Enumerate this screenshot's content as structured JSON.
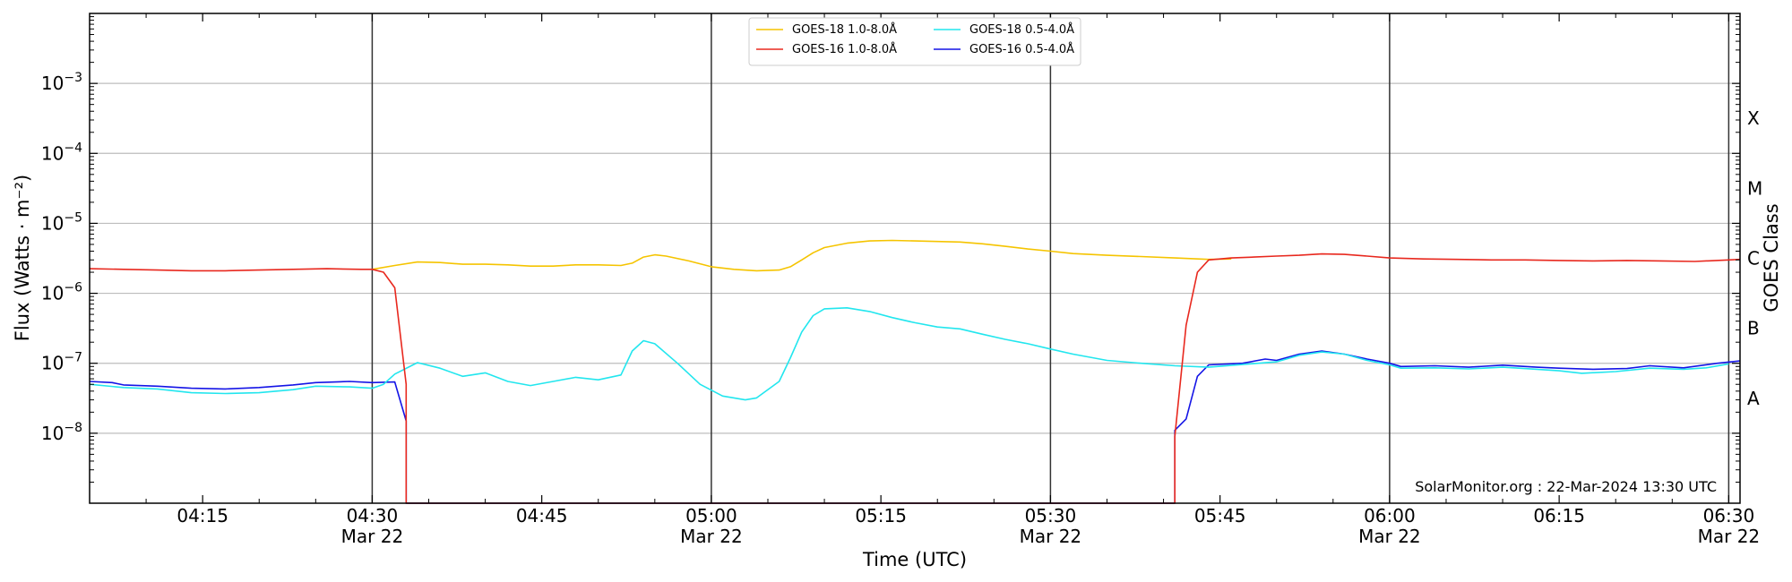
{
  "chart_data": {
    "type": "line",
    "title": "",
    "xlabel": "Time (UTC)",
    "ylabel": "Flux (Watts · m⁻²)",
    "ylabel_right": "GOES Class",
    "yscale": "log",
    "ylim": [
      1e-09,
      0.01
    ],
    "xlim": [
      "04:05",
      "06:31"
    ],
    "grid": "horizontal",
    "legend_placement": "top-center",
    "credit": "SolarMonitor.org : 22-Mar-2024 13:30 UTC",
    "y_ticks": [
      {
        "value": 0.001,
        "base": "10",
        "exp": "−3"
      },
      {
        "value": 0.0001,
        "base": "10",
        "exp": "−4"
      },
      {
        "value": 1e-05,
        "base": "10",
        "exp": "−5"
      },
      {
        "value": 1e-06,
        "base": "10",
        "exp": "−6"
      },
      {
        "value": 1e-07,
        "base": "10",
        "exp": "−7"
      },
      {
        "value": 1e-08,
        "base": "10",
        "exp": "−8"
      }
    ],
    "x_ticks": [
      {
        "t": "04:15",
        "label": "04:15",
        "date": ""
      },
      {
        "t": "04:30",
        "label": "04:30",
        "date": "Mar 22"
      },
      {
        "t": "04:45",
        "label": "04:45",
        "date": ""
      },
      {
        "t": "05:00",
        "label": "05:00",
        "date": "Mar 22"
      },
      {
        "t": "05:15",
        "label": "05:15",
        "date": ""
      },
      {
        "t": "05:30",
        "label": "05:30",
        "date": "Mar 22"
      },
      {
        "t": "05:45",
        "label": "05:45",
        "date": ""
      },
      {
        "t": "06:00",
        "label": "06:00",
        "date": "Mar 22"
      },
      {
        "t": "06:15",
        "label": "06:15",
        "date": ""
      },
      {
        "t": "06:30",
        "label": "06:30",
        "date": "Mar 22"
      }
    ],
    "vertical_lines": [
      "04:30",
      "05:00",
      "05:30",
      "06:00",
      "06:30"
    ],
    "goes_classes": [
      {
        "label": "A",
        "value": 3.16e-08
      },
      {
        "label": "B",
        "value": 3.16e-07
      },
      {
        "label": "C",
        "value": 3.16e-06
      },
      {
        "label": "M",
        "value": 3.16e-05
      },
      {
        "label": "X",
        "value": 0.000316
      }
    ],
    "series": [
      {
        "name": "GOES-18 1.0-8.0Å",
        "color": "#f5c400",
        "points": [
          [
            "04:30",
            2.2e-06
          ],
          [
            "04:32",
            2.5e-06
          ],
          [
            "04:34",
            2.8e-06
          ],
          [
            "04:36",
            2.75e-06
          ],
          [
            "04:38",
            2.6e-06
          ],
          [
            "04:40",
            2.6e-06
          ],
          [
            "04:42",
            2.55e-06
          ],
          [
            "04:44",
            2.45e-06
          ],
          [
            "04:46",
            2.45e-06
          ],
          [
            "04:48",
            2.55e-06
          ],
          [
            "04:50",
            2.55e-06
          ],
          [
            "04:52",
            2.5e-06
          ],
          [
            "04:53",
            2.7e-06
          ],
          [
            "04:54",
            3.3e-06
          ],
          [
            "04:55",
            3.55e-06
          ],
          [
            "04:56",
            3.4e-06
          ],
          [
            "04:58",
            2.9e-06
          ],
          [
            "05:00",
            2.4e-06
          ],
          [
            "05:02",
            2.2e-06
          ],
          [
            "05:04",
            2.1e-06
          ],
          [
            "05:06",
            2.15e-06
          ],
          [
            "05:07",
            2.4e-06
          ],
          [
            "05:08",
            3e-06
          ],
          [
            "05:09",
            3.8e-06
          ],
          [
            "05:10",
            4.5e-06
          ],
          [
            "05:12",
            5.2e-06
          ],
          [
            "05:14",
            5.6e-06
          ],
          [
            "05:16",
            5.7e-06
          ],
          [
            "05:18",
            5.6e-06
          ],
          [
            "05:20",
            5.5e-06
          ],
          [
            "05:22",
            5.4e-06
          ],
          [
            "05:24",
            5.1e-06
          ],
          [
            "05:26",
            4.7e-06
          ],
          [
            "05:28",
            4.3e-06
          ],
          [
            "05:30",
            4e-06
          ],
          [
            "05:32",
            3.7e-06
          ],
          [
            "05:35",
            3.5e-06
          ],
          [
            "05:38",
            3.35e-06
          ],
          [
            "05:41",
            3.2e-06
          ],
          [
            "05:44",
            3.05e-06
          ],
          [
            "05:46",
            3.1e-06
          ]
        ]
      },
      {
        "name": "GOES-16 1.0-8.0Å",
        "color": "#e8281e",
        "points": [
          [
            "04:05",
            2.25e-06
          ],
          [
            "04:08",
            2.2e-06
          ],
          [
            "04:11",
            2.15e-06
          ],
          [
            "04:14",
            2.1e-06
          ],
          [
            "04:17",
            2.1e-06
          ],
          [
            "04:20",
            2.15e-06
          ],
          [
            "04:23",
            2.2e-06
          ],
          [
            "04:26",
            2.25e-06
          ],
          [
            "04:29",
            2.2e-06
          ],
          [
            "04:30",
            2.2e-06
          ],
          [
            "04:31",
            2e-06
          ],
          [
            "04:32",
            1.2e-06
          ],
          [
            "04:33",
            5e-08
          ],
          [
            "04:33",
            1e-10
          ],
          [
            "05:41",
            1e-10
          ],
          [
            "05:41",
            9e-09
          ],
          [
            "05:42",
            3.5e-07
          ],
          [
            "05:43",
            2e-06
          ],
          [
            "05:44",
            3e-06
          ],
          [
            "05:46",
            3.2e-06
          ],
          [
            "05:48",
            3.3e-06
          ],
          [
            "05:50",
            3.4e-06
          ],
          [
            "05:52",
            3.5e-06
          ],
          [
            "05:54",
            3.65e-06
          ],
          [
            "05:56",
            3.6e-06
          ],
          [
            "05:58",
            3.4e-06
          ],
          [
            "06:00",
            3.2e-06
          ],
          [
            "06:03",
            3.1e-06
          ],
          [
            "06:06",
            3.05e-06
          ],
          [
            "06:09",
            3e-06
          ],
          [
            "06:12",
            3e-06
          ],
          [
            "06:15",
            2.95e-06
          ],
          [
            "06:18",
            2.9e-06
          ],
          [
            "06:21",
            2.95e-06
          ],
          [
            "06:24",
            2.9e-06
          ],
          [
            "06:27",
            2.85e-06
          ],
          [
            "06:30",
            3e-06
          ],
          [
            "06:31",
            3.05e-06
          ]
        ]
      },
      {
        "name": "GOES-18 0.5-4.0Å",
        "color": "#22e6ee",
        "points": [
          [
            "04:05",
            5e-08
          ],
          [
            "04:08",
            4.5e-08
          ],
          [
            "04:11",
            4.3e-08
          ],
          [
            "04:14",
            3.8e-08
          ],
          [
            "04:17",
            3.7e-08
          ],
          [
            "04:20",
            3.8e-08
          ],
          [
            "04:23",
            4.2e-08
          ],
          [
            "04:25",
            4.7e-08
          ],
          [
            "04:28",
            4.6e-08
          ],
          [
            "04:30",
            4.4e-08
          ],
          [
            "04:31",
            5e-08
          ],
          [
            "04:32",
            7e-08
          ],
          [
            "04:34",
            1.02e-07
          ],
          [
            "04:36",
            8.5e-08
          ],
          [
            "04:38",
            6.5e-08
          ],
          [
            "04:40",
            7.3e-08
          ],
          [
            "04:42",
            5.5e-08
          ],
          [
            "04:44",
            4.8e-08
          ],
          [
            "04:46",
            5.5e-08
          ],
          [
            "04:48",
            6.3e-08
          ],
          [
            "04:50",
            5.8e-08
          ],
          [
            "04:52",
            6.8e-08
          ],
          [
            "04:53",
            1.5e-07
          ],
          [
            "04:54",
            2.1e-07
          ],
          [
            "04:55",
            1.9e-07
          ],
          [
            "04:57",
            1e-07
          ],
          [
            "04:59",
            5e-08
          ],
          [
            "05:01",
            3.4e-08
          ],
          [
            "05:03",
            3e-08
          ],
          [
            "05:04",
            3.2e-08
          ],
          [
            "05:06",
            5.5e-08
          ],
          [
            "05:07",
            1.2e-07
          ],
          [
            "05:08",
            2.8e-07
          ],
          [
            "05:09",
            4.8e-07
          ],
          [
            "05:10",
            6e-07
          ],
          [
            "05:12",
            6.2e-07
          ],
          [
            "05:14",
            5.5e-07
          ],
          [
            "05:16",
            4.5e-07
          ],
          [
            "05:18",
            3.8e-07
          ],
          [
            "05:20",
            3.3e-07
          ],
          [
            "05:22",
            3.1e-07
          ],
          [
            "05:24",
            2.6e-07
          ],
          [
            "05:26",
            2.2e-07
          ],
          [
            "05:28",
            1.9e-07
          ],
          [
            "05:30",
            1.6e-07
          ],
          [
            "05:32",
            1.35e-07
          ],
          [
            "05:35",
            1.1e-07
          ],
          [
            "05:38",
            1e-07
          ],
          [
            "05:41",
            9.2e-08
          ],
          [
            "05:44",
            8.8e-08
          ],
          [
            "05:47",
            9.6e-08
          ],
          [
            "05:50",
            1.05e-07
          ],
          [
            "05:52",
            1.3e-07
          ],
          [
            "05:54",
            1.45e-07
          ],
          [
            "05:56",
            1.35e-07
          ],
          [
            "05:58",
            1.1e-07
          ],
          [
            "06:00",
            9.5e-08
          ],
          [
            "06:01",
            8.5e-08
          ],
          [
            "06:04",
            8.6e-08
          ],
          [
            "06:07",
            8.3e-08
          ],
          [
            "06:10",
            8.8e-08
          ],
          [
            "06:13",
            8.2e-08
          ],
          [
            "06:15",
            7.8e-08
          ],
          [
            "06:17",
            7.2e-08
          ],
          [
            "06:20",
            7.6e-08
          ],
          [
            "06:23",
            8.5e-08
          ],
          [
            "06:26",
            8.2e-08
          ],
          [
            "06:28",
            8.6e-08
          ],
          [
            "06:30",
            9.8e-08
          ]
        ]
      },
      {
        "name": "GOES-16 0.5-4.0Å",
        "color": "#1414e6",
        "points": [
          [
            "04:05",
            5.5e-08
          ],
          [
            "04:07",
            5.3e-08
          ],
          [
            "04:08",
            4.9e-08
          ],
          [
            "04:11",
            4.7e-08
          ],
          [
            "04:14",
            4.4e-08
          ],
          [
            "04:17",
            4.3e-08
          ],
          [
            "04:20",
            4.5e-08
          ],
          [
            "04:23",
            4.9e-08
          ],
          [
            "04:25",
            5.3e-08
          ],
          [
            "04:28",
            5.5e-08
          ],
          [
            "04:30",
            5.3e-08
          ],
          [
            "04:32",
            5.4e-08
          ],
          [
            "04:33",
            1.5e-08
          ],
          [
            "04:33",
            1e-10
          ],
          [
            "05:41",
            1e-10
          ],
          [
            "05:41",
            1.1e-08
          ],
          [
            "05:42",
            1.6e-08
          ],
          [
            "05:43",
            6.5e-08
          ],
          [
            "05:44",
            9.5e-08
          ],
          [
            "05:47",
            1e-07
          ],
          [
            "05:49",
            1.15e-07
          ],
          [
            "05:50",
            1.1e-07
          ],
          [
            "05:52",
            1.35e-07
          ],
          [
            "05:54",
            1.5e-07
          ],
          [
            "05:56",
            1.35e-07
          ],
          [
            "05:58",
            1.15e-07
          ],
          [
            "06:00",
            1e-07
          ],
          [
            "06:01",
            9e-08
          ],
          [
            "06:04",
            9.2e-08
          ],
          [
            "06:07",
            8.8e-08
          ],
          [
            "06:10",
            9.4e-08
          ],
          [
            "06:13",
            8.8e-08
          ],
          [
            "06:15",
            8.5e-08
          ],
          [
            "06:18",
            8.2e-08
          ],
          [
            "06:21",
            8.4e-08
          ],
          [
            "06:23",
            9.2e-08
          ],
          [
            "06:26",
            8.6e-08
          ],
          [
            "06:29",
            1e-07
          ],
          [
            "06:31",
            1.08e-07
          ]
        ]
      }
    ]
  }
}
